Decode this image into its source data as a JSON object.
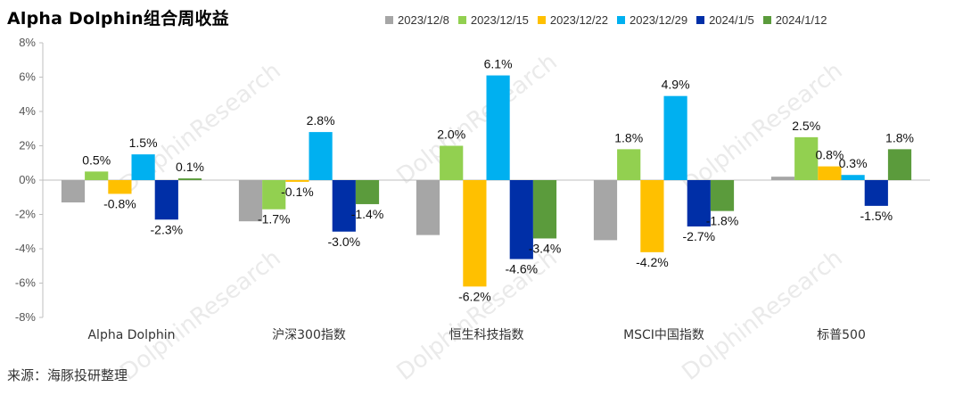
{
  "title": "Alpha Dolphin组合周收益",
  "source": "来源：海豚投研整理",
  "colors": {
    "2023/12/8": "#a6a6a6",
    "2023/12/15": "#92d050",
    "2023/12/22": "#ffc000",
    "2023/12/29": "#00b0f0",
    "2024/1/5": "#002fa7",
    "2024/1/12": "#5b9b3c"
  },
  "chart_data": {
    "type": "bar",
    "title": "Alpha Dolphin组合周收益",
    "xlabel": "",
    "ylabel": "",
    "ylim": [
      -8,
      8
    ],
    "yticks": [
      "8%",
      "6%",
      "4%",
      "2%",
      "0%",
      "-2%",
      "-4%",
      "-6%",
      "-8%"
    ],
    "grid": false,
    "legend_position": "top",
    "categories": [
      "Alpha Dolphin",
      "沪深300指数",
      "恒生科技指数",
      "MSCI中国指数",
      "标普500"
    ],
    "series": [
      {
        "name": "2023/12/8",
        "values": [
          -1.3,
          -2.4,
          -3.2,
          -3.5,
          0.2
        ],
        "labels": [
          "",
          "",
          "",
          "",
          ""
        ]
      },
      {
        "name": "2023/12/15",
        "values": [
          0.5,
          -1.7,
          2.0,
          1.8,
          2.5
        ],
        "labels": [
          "0.5%",
          "-1.7%",
          "2.0%",
          "1.8%",
          "2.5%"
        ]
      },
      {
        "name": "2023/12/22",
        "values": [
          -0.8,
          -0.1,
          -6.2,
          -4.2,
          0.8
        ],
        "labels": [
          "-0.8%",
          "-0.1%",
          "-6.2%",
          "-4.2%",
          "0.8%"
        ]
      },
      {
        "name": "2023/12/29",
        "values": [
          1.5,
          2.8,
          6.1,
          4.9,
          0.3
        ],
        "labels": [
          "1.5%",
          "2.8%",
          "6.1%",
          "4.9%",
          "0.3%"
        ]
      },
      {
        "name": "2024/1/5",
        "values": [
          -2.3,
          -3.0,
          -4.6,
          -2.7,
          -1.5
        ],
        "labels": [
          "-2.3%",
          "-3.0%",
          "-4.6%",
          "-2.7%",
          "-1.5%"
        ]
      },
      {
        "name": "2024/1/12",
        "values": [
          0.1,
          -1.4,
          -3.4,
          -1.8,
          1.8
        ],
        "labels": [
          "0.1%",
          "-1.4%",
          "-3.4%",
          "-1.8%",
          "1.8%"
        ]
      }
    ]
  }
}
